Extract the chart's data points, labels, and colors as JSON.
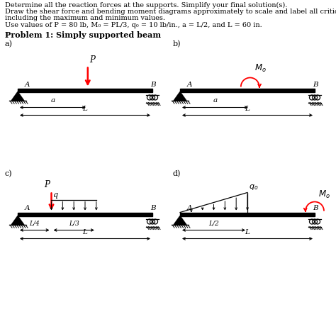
{
  "title_line1": "Determine all the reaction forces at the supports. Simplify your final solution(s).",
  "title_line2a": "Draw the shear force and bending moment diagrams approximately to scale and label all critical ordinates,",
  "title_line2b": "including the maximum and minimum values.",
  "title_line3": "Use values of P = 80 lb, M₀ = PL/3, q₀ = 10 lb/in., a = L/2, and L = 60 in.",
  "problem_label": "Problem 1: Simply supported beam",
  "background": "#ffffff"
}
